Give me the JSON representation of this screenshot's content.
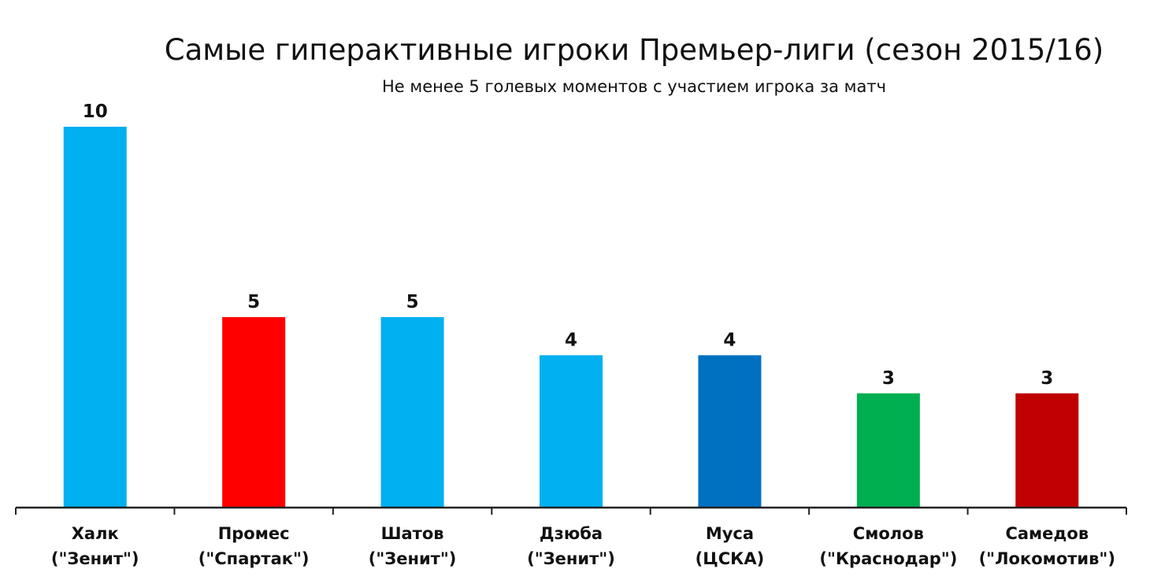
{
  "title": "Самые гиперактивные игроки Премьер-лиги (сезон 2015/16)",
  "subtitle": "Не менее 5 голевых моментов с участием игрока за матч",
  "chart_data": {
    "type": "bar",
    "title": "Самые гиперактивные игроки Премьер-лиги (сезон 2015/16)",
    "subtitle": "Не менее 5 голевых моментов с участием игрока за матч",
    "xlabel": "",
    "ylabel": "",
    "ylim": [
      0,
      10
    ],
    "grid": false,
    "categories": [
      [
        "Халк",
        "(\"Зенит\")"
      ],
      [
        "Промес",
        "(\"Спартак\")"
      ],
      [
        "Шатов",
        "(\"Зенит\")"
      ],
      [
        "Дзюба",
        "(\"Зенит\")"
      ],
      [
        "Муса",
        "(ЦСКА)"
      ],
      [
        "Смолов",
        "(\"Краснодар\")"
      ],
      [
        "Самедов",
        "(\"Локомотив\")"
      ]
    ],
    "values": [
      10,
      5,
      5,
      4,
      4,
      3,
      3
    ],
    "colors": [
      "#00b0f0",
      "#ff0000",
      "#00b0f0",
      "#00b0f0",
      "#0070c0",
      "#00b050",
      "#c00000"
    ]
  }
}
